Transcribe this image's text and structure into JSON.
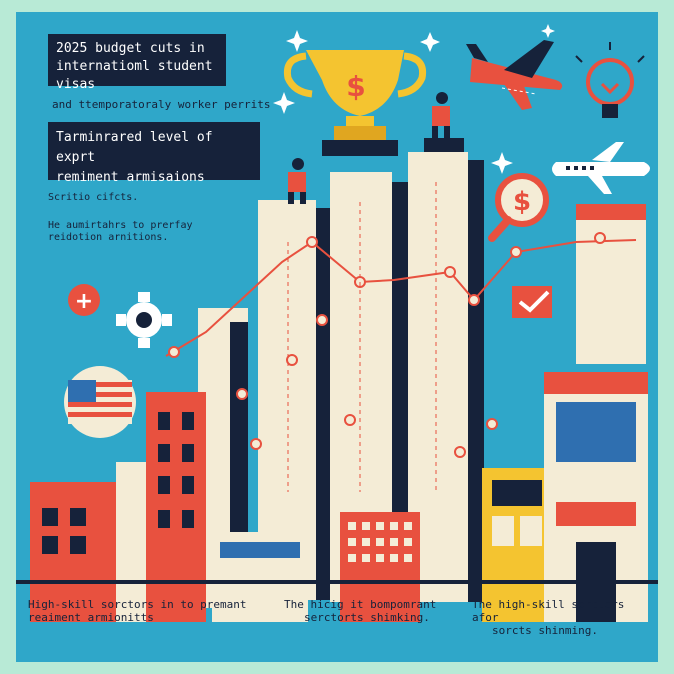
{
  "header": {
    "box1_line1": "2025 budget cuts in",
    "box1_line2": "internatioml student visas",
    "line2": "and ttemporatoraly worker perrits",
    "box2_line1": "Tarminrared level of exprt",
    "box2_line2": "remiment armisaions",
    "small1": "Scritio cifcts.",
    "small2_line1": "He aumirtahrs to prerfay",
    "small2_line2": "reidotion arnitions."
  },
  "footer": {
    "cap1_line1": "High-skill sorctors in to premant",
    "cap1_line2": "reaiment armionitts",
    "cap2_line1": "The hicig it bompomrant",
    "cap2_line2": "serctorts shimking.",
    "cap3_line1": "The high-skill sorctors afor",
    "cap3_line2": "sorcts shinming."
  },
  "icons": {
    "trophy_symbol": "$",
    "dollar_symbol": "$",
    "plus_symbol": "+"
  },
  "colors": {
    "background": "#2fa7c9",
    "navy": "#16223a",
    "cream": "#f4ecd6",
    "red": "#e8513f",
    "yellow": "#f4c430",
    "mint": "#b8ead6"
  }
}
